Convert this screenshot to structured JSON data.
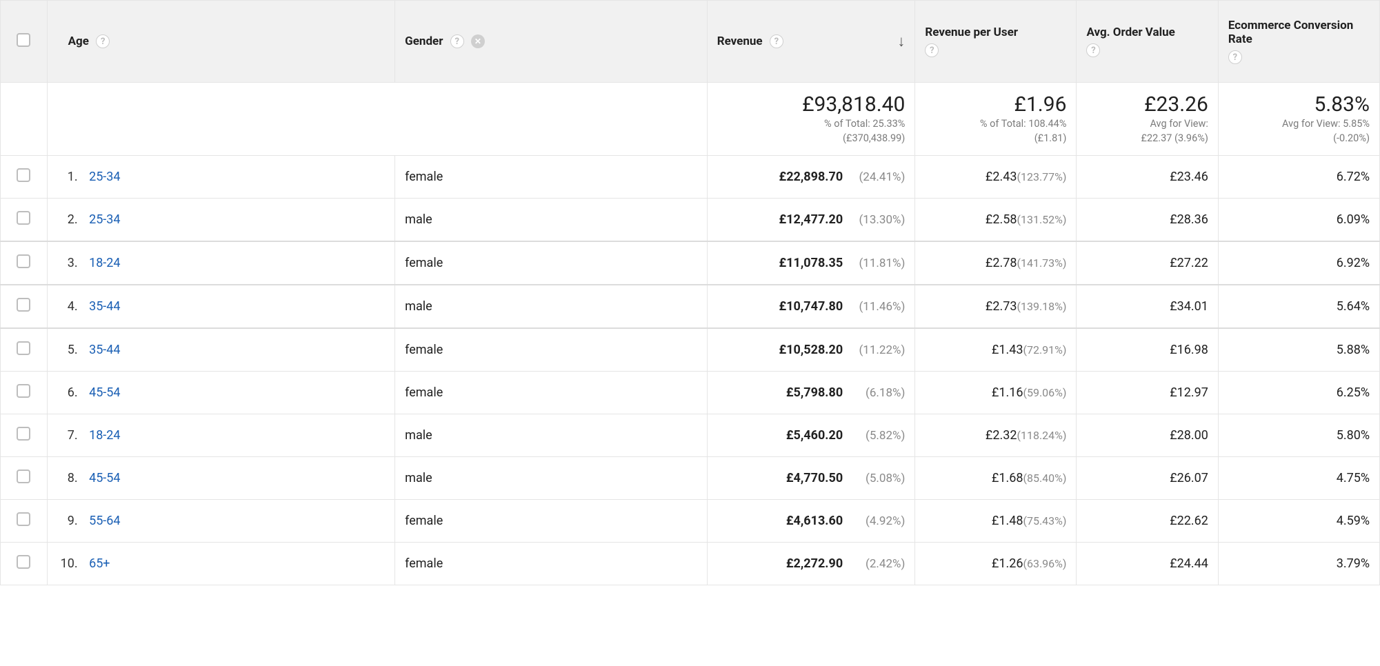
{
  "columns": {
    "age": "Age",
    "gender": "Gender",
    "revenue": "Revenue",
    "revenue_per_user": "Revenue per User",
    "avg_order_value": "Avg. Order Value",
    "ecr": "Ecommerce Conversion Rate"
  },
  "sort": {
    "column": "revenue",
    "direction": "desc"
  },
  "totals": {
    "revenue": {
      "value": "£93,818.40",
      "sub1": "% of Total: 25.33%",
      "sub2": "(£370,438.99)"
    },
    "revenue_per_user": {
      "value": "£1.96",
      "sub1": "% of Total: 108.44%",
      "sub2": "(£1.81)"
    },
    "avg_order_value": {
      "value": "£23.26",
      "sub1": "Avg for View:",
      "sub2": "£22.37 (3.96%)"
    },
    "ecr": {
      "value": "5.83%",
      "sub1": "Avg for View: 5.85%",
      "sub2": "(-0.20%)"
    }
  },
  "rows": [
    {
      "n": "1.",
      "age": "25-34",
      "gender": "female",
      "revenue": "£22,898.70",
      "revenue_pct": "(24.41%)",
      "rpu": "£2.43",
      "rpu_pct": "(123.77%)",
      "aov": "£23.46",
      "ecr": "6.72%"
    },
    {
      "n": "2.",
      "age": "25-34",
      "gender": "male",
      "revenue": "£12,477.20",
      "revenue_pct": "(13.30%)",
      "rpu": "£2.58",
      "rpu_pct": "(131.52%)",
      "aov": "£28.36",
      "ecr": "6.09%"
    },
    {
      "n": "3.",
      "age": "18-24",
      "gender": "female",
      "revenue": "£11,078.35",
      "revenue_pct": "(11.81%)",
      "rpu": "£2.78",
      "rpu_pct": "(141.73%)",
      "aov": "£27.22",
      "ecr": "6.92%"
    },
    {
      "n": "4.",
      "age": "35-44",
      "gender": "male",
      "revenue": "£10,747.80",
      "revenue_pct": "(11.46%)",
      "rpu": "£2.73",
      "rpu_pct": "(139.18%)",
      "aov": "£34.01",
      "ecr": "5.64%"
    },
    {
      "n": "5.",
      "age": "35-44",
      "gender": "female",
      "revenue": "£10,528.20",
      "revenue_pct": "(11.22%)",
      "rpu": "£1.43",
      "rpu_pct": "(72.91%)",
      "aov": "£16.98",
      "ecr": "5.88%"
    },
    {
      "n": "6.",
      "age": "45-54",
      "gender": "female",
      "revenue": "£5,798.80",
      "revenue_pct": "(6.18%)",
      "rpu": "£1.16",
      "rpu_pct": "(59.06%)",
      "aov": "£12.97",
      "ecr": "6.25%"
    },
    {
      "n": "7.",
      "age": "18-24",
      "gender": "male",
      "revenue": "£5,460.20",
      "revenue_pct": "(5.82%)",
      "rpu": "£2.32",
      "rpu_pct": "(118.24%)",
      "aov": "£28.00",
      "ecr": "5.80%"
    },
    {
      "n": "8.",
      "age": "45-54",
      "gender": "male",
      "revenue": "£4,770.50",
      "revenue_pct": "(5.08%)",
      "rpu": "£1.68",
      "rpu_pct": "(85.40%)",
      "aov": "£26.07",
      "ecr": "4.75%"
    },
    {
      "n": "9.",
      "age": "55-64",
      "gender": "female",
      "revenue": "£4,613.60",
      "revenue_pct": "(4.92%)",
      "rpu": "£1.48",
      "rpu_pct": "(75.43%)",
      "aov": "£22.62",
      "ecr": "4.59%"
    },
    {
      "n": "10.",
      "age": "65+",
      "gender": "female",
      "revenue": "£2,272.90",
      "revenue_pct": "(2.42%)",
      "rpu": "£1.26",
      "rpu_pct": "(63.96%)",
      "aov": "£24.44",
      "ecr": "3.79%"
    }
  ],
  "heavy_divider_after_index": [
    1,
    2,
    3
  ],
  "colors": {
    "link": "#1a5fb4",
    "header_bg": "#f1f1f1",
    "cb_col_bg": "#f5f5f5",
    "border": "#e5e5e5",
    "muted": "#8a8a8a",
    "text": "#212121"
  }
}
